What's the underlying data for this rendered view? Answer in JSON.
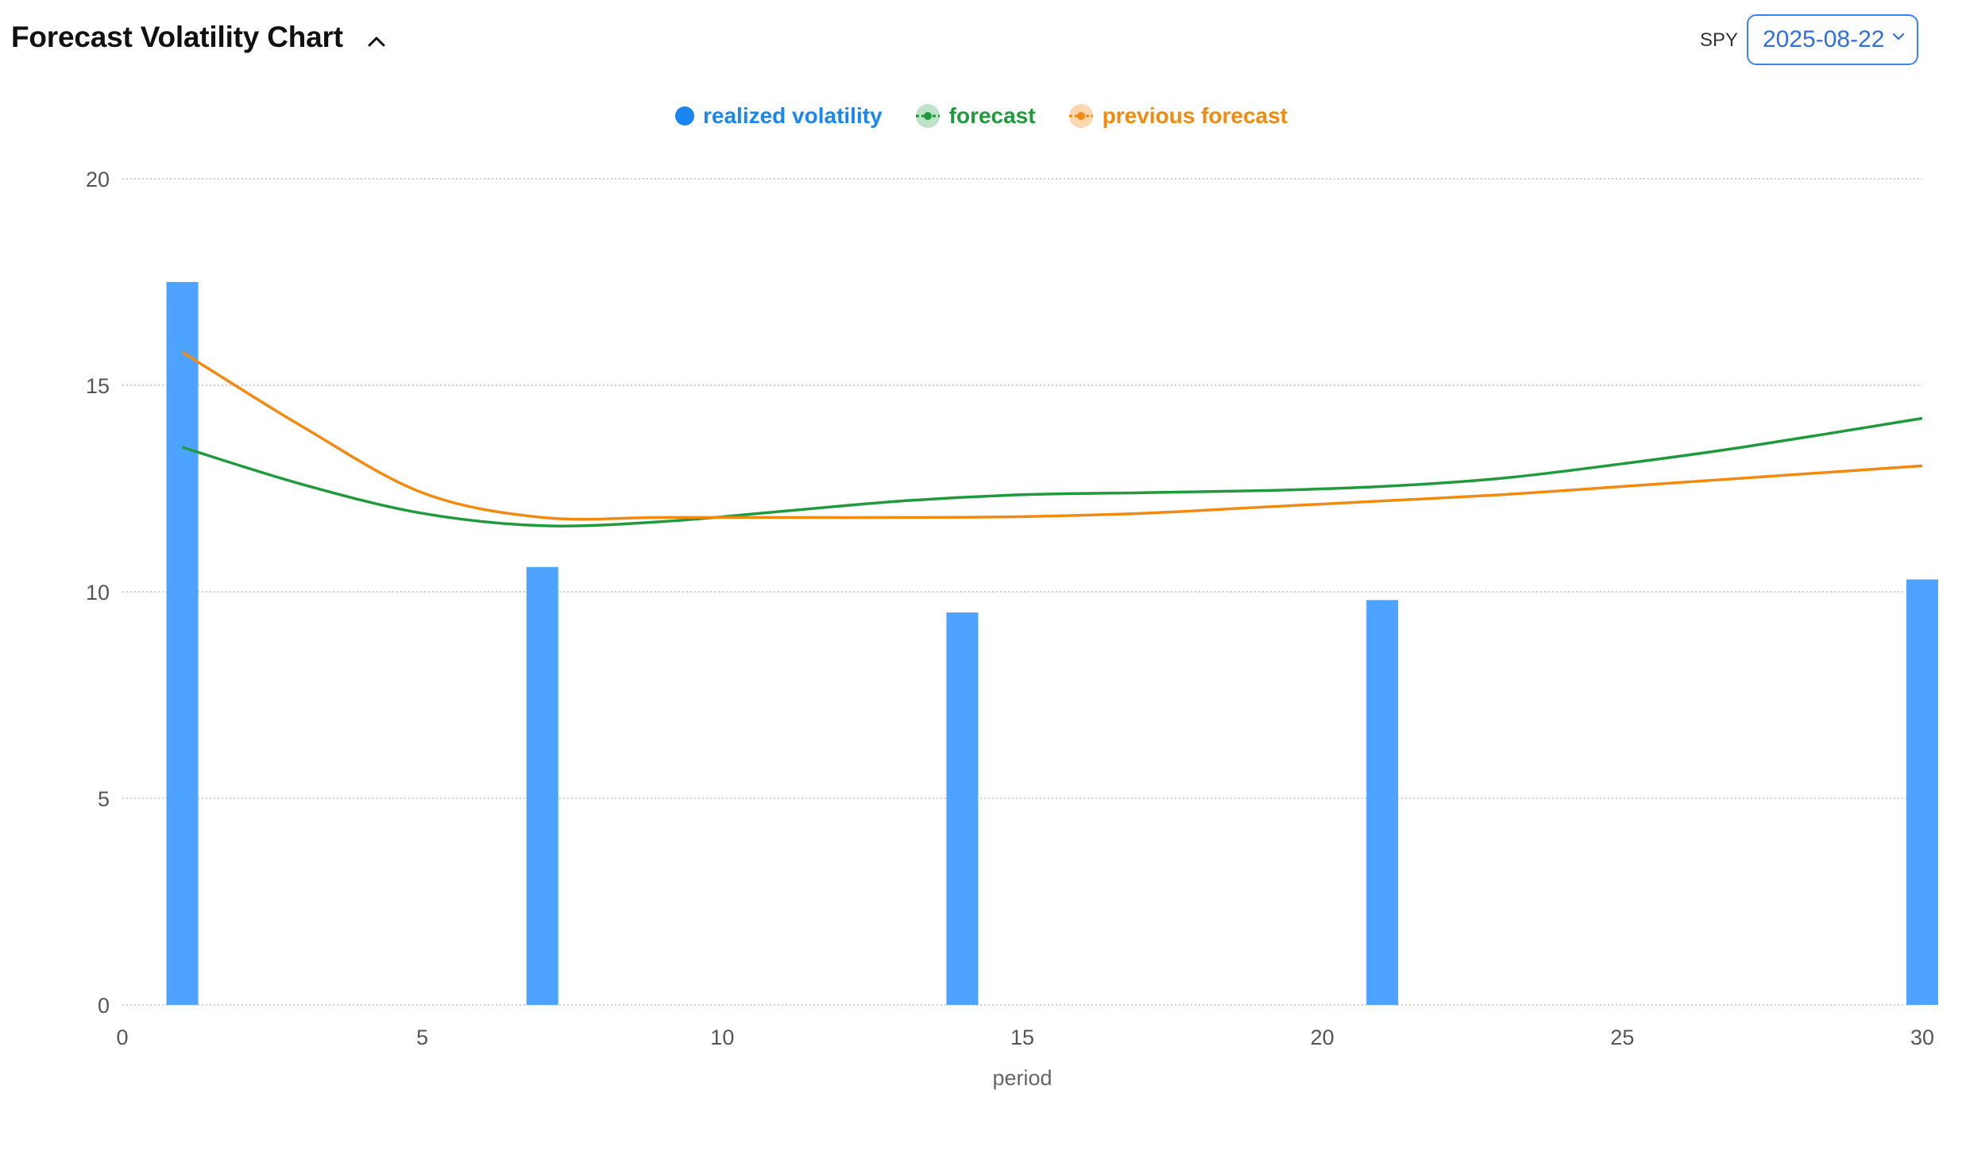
{
  "header": {
    "title": "Forecast Volatility Chart",
    "ticker": "SPY",
    "date": "2025-08-22"
  },
  "legend": [
    {
      "key": "rv",
      "label": "realized volatility",
      "color": "#1a86f0"
    },
    {
      "key": "fc",
      "label": "forecast",
      "color": "#1f9a3c"
    },
    {
      "key": "pf",
      "label": "previous forecast",
      "color": "#f28a10"
    }
  ],
  "chart_data": {
    "type": "bar",
    "title": "Forecast Volatility Chart",
    "xlabel": "period",
    "ylabel": "",
    "xlim": [
      0,
      30
    ],
    "ylim": [
      0,
      20
    ],
    "x_ticks": [
      0,
      5,
      10,
      15,
      20,
      25,
      30
    ],
    "y_ticks": [
      0,
      5,
      10,
      15,
      20
    ],
    "grid": true,
    "legend_position": "top-center",
    "bars": {
      "name": "realized volatility",
      "color": "#4da3ff",
      "x": [
        1,
        7,
        14,
        21,
        30
      ],
      "values": [
        17.5,
        10.6,
        9.5,
        9.8,
        10.3
      ]
    },
    "series": [
      {
        "name": "forecast",
        "type": "line",
        "color": "#1f9a3c",
        "x": [
          1,
          3,
          5,
          7,
          9,
          11,
          13,
          15,
          17,
          19,
          21,
          23,
          25,
          27,
          30
        ],
        "values": [
          13.5,
          12.6,
          11.9,
          11.6,
          11.7,
          11.95,
          12.2,
          12.35,
          12.4,
          12.45,
          12.55,
          12.75,
          13.1,
          13.5,
          14.2
        ]
      },
      {
        "name": "previous forecast",
        "type": "line",
        "color": "#f28a10",
        "x": [
          1,
          3,
          5,
          7,
          9,
          11,
          13,
          15,
          17,
          19,
          21,
          23,
          25,
          27,
          30
        ],
        "values": [
          15.8,
          14.0,
          12.4,
          11.8,
          11.8,
          11.8,
          11.8,
          11.82,
          11.9,
          12.05,
          12.2,
          12.35,
          12.55,
          12.75,
          13.05
        ]
      }
    ]
  }
}
